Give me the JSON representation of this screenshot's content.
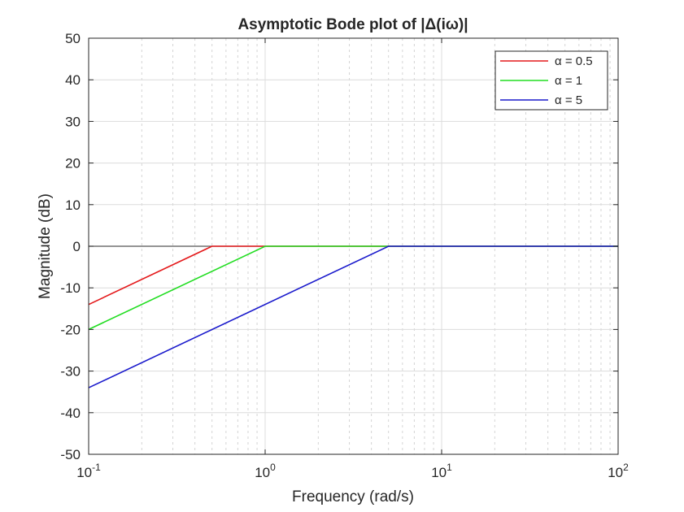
{
  "chart_data": {
    "type": "line",
    "title": "Asymptotic Bode plot of |Δ(iω)|",
    "xlabel": "Frequency (rad/s)",
    "ylabel": "Magnitude (dB)",
    "xscale": "log",
    "xlim": [
      0.1,
      100
    ],
    "ylim": [
      -50,
      50
    ],
    "x_ticks": [
      {
        "base": "10",
        "exp": "-1",
        "value": 0.1
      },
      {
        "base": "10",
        "exp": "0",
        "value": 1
      },
      {
        "base": "10",
        "exp": "1",
        "value": 10
      },
      {
        "base": "10",
        "exp": "2",
        "value": 100
      }
    ],
    "y_ticks": [
      {
        "label": "50",
        "value": 50
      },
      {
        "label": "40",
        "value": 40
      },
      {
        "label": "30",
        "value": 30
      },
      {
        "label": "20",
        "value": 20
      },
      {
        "label": "10",
        "value": 10
      },
      {
        "label": "0",
        "value": 0
      },
      {
        "label": "-10",
        "value": -10
      },
      {
        "label": "-20",
        "value": -20
      },
      {
        "label": "-30",
        "value": -30
      },
      {
        "label": "-40",
        "value": -40
      },
      {
        "label": "-50",
        "value": -50
      }
    ],
    "grid": true,
    "minor_grid": true,
    "reference_line": {
      "y": 0,
      "color": "#555555"
    },
    "legend_position": "top-right",
    "series": [
      {
        "name": "α = 0.5",
        "color": "#e41a1c",
        "x": [
          0.1,
          0.5,
          100
        ],
        "y": [
          -14,
          0,
          0
        ]
      },
      {
        "name": "α = 1",
        "color": "#22dd22",
        "x": [
          0.1,
          1,
          100
        ],
        "y": [
          -20,
          0,
          0
        ]
      },
      {
        "name": "α = 5",
        "color": "#1a1acc",
        "x": [
          0.1,
          5,
          100
        ],
        "y": [
          -34,
          0,
          0
        ]
      }
    ]
  }
}
